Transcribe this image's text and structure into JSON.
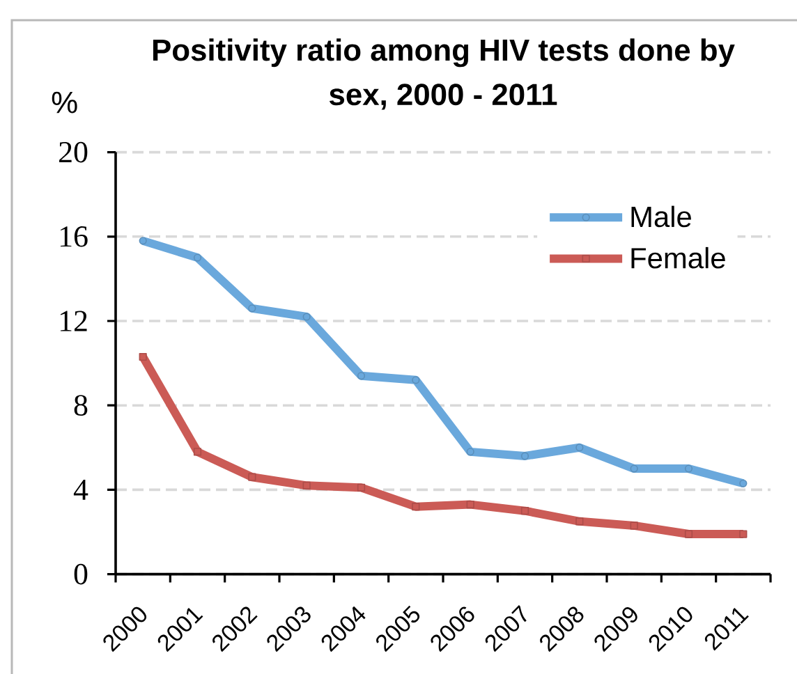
{
  "chart_data": {
    "type": "line",
    "title": "Positivity ratio among HIV tests done by sex, 2000 - 2011",
    "ylabel": "%",
    "categories": [
      "2000",
      "2001",
      "2002",
      "2003",
      "2004",
      "2005",
      "2006",
      "2007",
      "2008",
      "2009",
      "2010",
      "2011"
    ],
    "series": [
      {
        "name": "Male",
        "color": "#6aa8dc",
        "marker": "circle",
        "values": [
          15.8,
          15.0,
          12.6,
          12.2,
          9.4,
          9.2,
          5.8,
          5.6,
          6.0,
          5.0,
          5.0,
          4.3
        ]
      },
      {
        "name": "Female",
        "color": "#cb5b56",
        "marker": "square",
        "values": [
          10.3,
          5.8,
          4.6,
          4.2,
          4.1,
          3.2,
          3.3,
          3.0,
          2.5,
          2.3,
          1.9,
          1.9
        ]
      }
    ],
    "ylim": [
      0,
      20
    ],
    "yticks": [
      0,
      4,
      8,
      12,
      16,
      20
    ],
    "grid": "y",
    "legend": "top right",
    "line_style": "solid"
  }
}
